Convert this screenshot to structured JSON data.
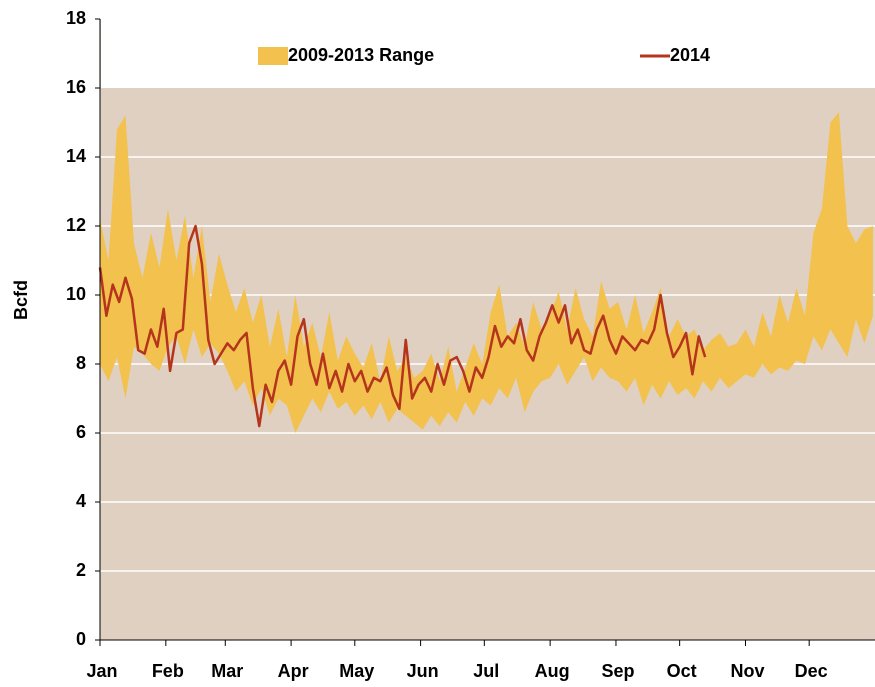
{
  "chart_data": {
    "type": "range-line",
    "y_label": "Bcfd",
    "xlim": [
      0,
      365
    ],
    "xticks": [
      {
        "value": 0,
        "label": "Jan"
      },
      {
        "value": 31,
        "label": "Feb"
      },
      {
        "value": 59,
        "label": "Mar"
      },
      {
        "value": 90,
        "label": "Apr"
      },
      {
        "value": 120,
        "label": "May"
      },
      {
        "value": 151,
        "label": "Jun"
      },
      {
        "value": 181,
        "label": "Jul"
      },
      {
        "value": 212,
        "label": "Aug"
      },
      {
        "value": 243,
        "label": "Sep"
      },
      {
        "value": 273,
        "label": "Oct"
      },
      {
        "value": 304,
        "label": "Nov"
      },
      {
        "value": 334,
        "label": "Dec"
      }
    ],
    "ylim": [
      0,
      18
    ],
    "yticks": [
      0,
      2,
      4,
      6,
      8,
      10,
      12,
      14,
      16,
      18
    ],
    "grid": true,
    "legend": "top",
    "legend_ylim": 16,
    "background": "#dfd0c2",
    "series": [
      {
        "name": "2009-2013 Range",
        "type": "band",
        "color": "#f2c14e",
        "x": [
          0,
          4,
          8,
          12,
          16,
          20,
          24,
          28,
          32,
          36,
          40,
          44,
          48,
          52,
          56,
          60,
          64,
          68,
          72,
          76,
          80,
          84,
          88,
          92,
          96,
          100,
          104,
          108,
          112,
          116,
          120,
          124,
          128,
          132,
          136,
          140,
          144,
          148,
          152,
          156,
          160,
          164,
          168,
          172,
          176,
          180,
          184,
          188,
          192,
          196,
          200,
          204,
          208,
          212,
          216,
          220,
          224,
          228,
          232,
          236,
          240,
          244,
          248,
          252,
          256,
          260,
          264,
          268,
          272,
          276,
          280,
          284,
          288,
          292,
          296,
          300,
          304,
          308,
          312,
          316,
          320,
          324,
          328,
          332,
          336,
          340,
          344,
          348,
          352,
          356,
          360,
          364
        ],
        "high": [
          12.2,
          11.0,
          14.8,
          15.2,
          11.5,
          10.5,
          11.8,
          10.8,
          12.5,
          11.0,
          12.3,
          10.5,
          12.0,
          9.8,
          11.2,
          10.3,
          9.5,
          10.2,
          9.2,
          10.0,
          8.5,
          9.6,
          8.2,
          10.0,
          8.5,
          9.2,
          8.2,
          9.5,
          8.1,
          8.8,
          8.3,
          7.9,
          8.6,
          7.5,
          8.8,
          7.8,
          8.2,
          7.6,
          7.8,
          8.3,
          7.5,
          8.5,
          7.2,
          7.9,
          8.6,
          8.0,
          9.5,
          10.3,
          8.8,
          9.2,
          8.5,
          9.8,
          9.0,
          9.4,
          10.1,
          9.0,
          10.2,
          9.3,
          8.8,
          10.4,
          9.6,
          9.8,
          9.0,
          10.0,
          8.9,
          9.5,
          10.2,
          8.8,
          9.3,
          8.8,
          9.0,
          8.4,
          8.7,
          8.9,
          8.5,
          8.6,
          9.0,
          8.5,
          9.5,
          8.8,
          10.0,
          9.2,
          10.2,
          9.4,
          11.8,
          12.5,
          15.0,
          15.3,
          12.0,
          11.5,
          11.9,
          12.0
        ],
        "low": [
          8.0,
          7.5,
          8.2,
          7.0,
          8.5,
          8.3,
          8.0,
          7.8,
          8.5,
          8.8,
          8.0,
          9.0,
          8.2,
          8.6,
          8.3,
          7.8,
          7.2,
          7.5,
          6.8,
          7.3,
          6.5,
          7.0,
          6.8,
          6.0,
          6.5,
          7.0,
          6.6,
          7.2,
          6.7,
          6.9,
          6.5,
          6.8,
          6.4,
          6.9,
          6.3,
          6.7,
          6.5,
          6.3,
          6.1,
          6.5,
          6.2,
          6.6,
          6.3,
          6.9,
          6.5,
          7.0,
          6.8,
          7.3,
          7.0,
          7.6,
          6.6,
          7.2,
          7.5,
          7.6,
          8.0,
          7.4,
          7.8,
          8.2,
          7.5,
          7.9,
          7.6,
          7.5,
          7.2,
          7.6,
          6.8,
          7.4,
          7.0,
          7.5,
          7.1,
          7.3,
          7.0,
          7.5,
          7.2,
          7.6,
          7.3,
          7.5,
          7.7,
          7.6,
          8.0,
          7.7,
          7.9,
          7.8,
          8.1,
          8.0,
          8.8,
          8.4,
          9.0,
          8.6,
          8.2,
          9.3,
          8.6,
          9.4
        ]
      },
      {
        "name": "2014",
        "type": "line",
        "color": "#b5341c",
        "x": [
          0,
          3,
          6,
          9,
          12,
          15,
          18,
          21,
          24,
          27,
          30,
          33,
          36,
          39,
          42,
          45,
          48,
          51,
          54,
          57,
          60,
          63,
          66,
          69,
          72,
          75,
          78,
          81,
          84,
          87,
          90,
          93,
          96,
          99,
          102,
          105,
          108,
          111,
          114,
          117,
          120,
          123,
          126,
          129,
          132,
          135,
          138,
          141,
          144,
          147,
          150,
          153,
          156,
          159,
          162,
          165,
          168,
          171,
          174,
          177,
          180,
          183,
          186,
          189,
          192,
          195,
          198,
          201,
          204,
          207,
          210,
          213,
          216,
          219,
          222,
          225,
          228,
          231,
          234,
          237,
          240,
          243,
          246,
          249,
          252,
          255,
          258,
          261,
          264,
          267,
          270,
          273,
          276,
          279,
          282,
          285
        ],
        "values": [
          10.8,
          9.4,
          10.3,
          9.8,
          10.5,
          9.9,
          8.4,
          8.3,
          9.0,
          8.5,
          9.6,
          7.8,
          8.9,
          9.0,
          11.5,
          12.0,
          10.9,
          8.7,
          8.0,
          8.3,
          8.6,
          8.4,
          8.7,
          8.9,
          7.3,
          6.2,
          7.4,
          6.9,
          7.8,
          8.1,
          7.4,
          8.8,
          9.3,
          8.0,
          7.4,
          8.3,
          7.3,
          7.8,
          7.2,
          8.0,
          7.5,
          7.8,
          7.2,
          7.6,
          7.5,
          7.9,
          7.1,
          6.7,
          8.7,
          7.0,
          7.4,
          7.6,
          7.2,
          8.0,
          7.4,
          8.1,
          8.2,
          7.8,
          7.2,
          7.9,
          7.6,
          8.2,
          9.1,
          8.5,
          8.8,
          8.6,
          9.3,
          8.4,
          8.1,
          8.8,
          9.2,
          9.7,
          9.2,
          9.7,
          8.6,
          9.0,
          8.4,
          8.3,
          9.0,
          9.4,
          8.7,
          8.3,
          8.8,
          8.6,
          8.4,
          8.7,
          8.6,
          9.0,
          10.0,
          8.9,
          8.2,
          8.5,
          8.9,
          7.7,
          8.8,
          8.2
        ]
      }
    ]
  }
}
